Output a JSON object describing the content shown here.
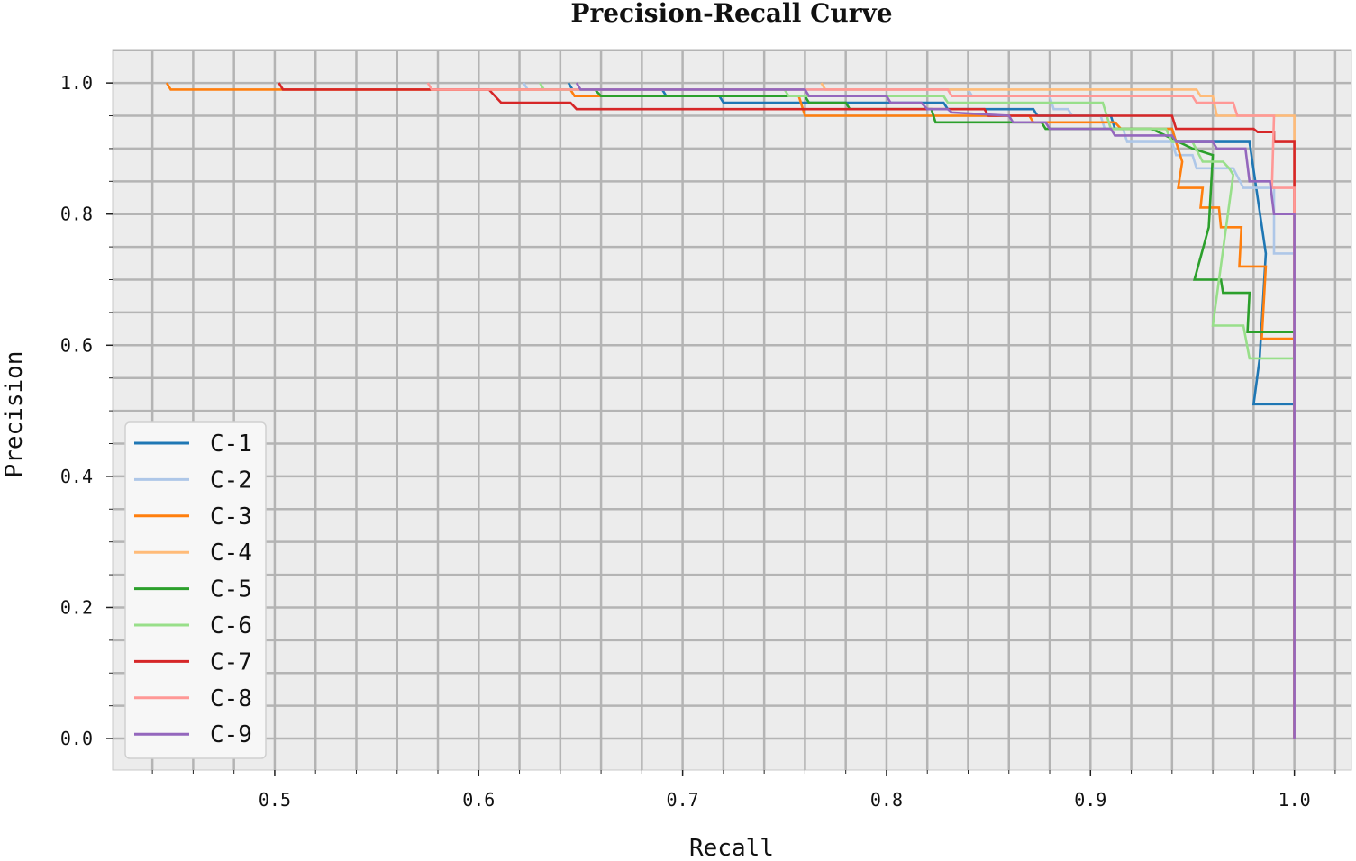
{
  "chart_data": {
    "type": "line",
    "title": "Precision-Recall Curve",
    "xlabel": "Recall",
    "ylabel": "Precision",
    "xlim": [
      0.4205,
      1.028
    ],
    "ylim": [
      -0.048,
      1.051
    ],
    "xticks": [
      "0.5",
      "0.6",
      "0.7",
      "0.8",
      "0.9",
      "1.0"
    ],
    "yticks": [
      "0.0",
      "0.2",
      "0.4",
      "0.6",
      "0.8",
      "1.0"
    ],
    "grid": true,
    "grid_x_step": 0.02,
    "grid_y_step": 0.05,
    "background": "#ececec",
    "legend_position": "lower-left",
    "series": [
      {
        "name": "C-1",
        "color": "#1f77b4",
        "points": [
          [
            0.644,
            1.0
          ],
          [
            0.646,
            0.99
          ],
          [
            0.69,
            0.99
          ],
          [
            0.692,
            0.98
          ],
          [
            0.718,
            0.98
          ],
          [
            0.72,
            0.97
          ],
          [
            0.828,
            0.97
          ],
          [
            0.83,
            0.96
          ],
          [
            0.872,
            0.96
          ],
          [
            0.874,
            0.95
          ],
          [
            0.91,
            0.95
          ],
          [
            0.912,
            0.93
          ],
          [
            0.94,
            0.93
          ],
          [
            0.942,
            0.91
          ],
          [
            0.978,
            0.91
          ],
          [
            0.986,
            0.74
          ],
          [
            0.983,
            0.58
          ],
          [
            0.98,
            0.51
          ],
          [
            1.0,
            0.51
          ],
          [
            1.0,
            0.0
          ]
        ]
      },
      {
        "name": "C-2",
        "color": "#aec7e8",
        "points": [
          [
            0.622,
            1.0
          ],
          [
            0.624,
            0.99
          ],
          [
            0.84,
            0.99
          ],
          [
            0.842,
            0.98
          ],
          [
            0.88,
            0.98
          ],
          [
            0.882,
            0.96
          ],
          [
            0.889,
            0.96
          ],
          [
            0.891,
            0.95
          ],
          [
            0.905,
            0.95
          ],
          [
            0.907,
            0.93
          ],
          [
            0.916,
            0.93
          ],
          [
            0.918,
            0.91
          ],
          [
            0.94,
            0.91
          ],
          [
            0.942,
            0.89
          ],
          [
            0.95,
            0.89
          ],
          [
            0.952,
            0.87
          ],
          [
            0.97,
            0.87
          ],
          [
            0.975,
            0.84
          ],
          [
            0.99,
            0.84
          ],
          [
            0.99,
            0.74
          ],
          [
            1.0,
            0.74
          ],
          [
            1.0,
            0.0
          ]
        ]
      },
      {
        "name": "C-3",
        "color": "#ff7f0e",
        "points": [
          [
            0.447,
            1.0
          ],
          [
            0.449,
            0.99
          ],
          [
            0.645,
            0.99
          ],
          [
            0.647,
            0.98
          ],
          [
            0.757,
            0.98
          ],
          [
            0.76,
            0.95
          ],
          [
            0.87,
            0.95
          ],
          [
            0.872,
            0.94
          ],
          [
            0.912,
            0.94
          ],
          [
            0.915,
            0.93
          ],
          [
            0.94,
            0.93
          ],
          [
            0.945,
            0.88
          ],
          [
            0.943,
            0.84
          ],
          [
            0.955,
            0.84
          ],
          [
            0.954,
            0.81
          ],
          [
            0.963,
            0.81
          ],
          [
            0.964,
            0.78
          ],
          [
            0.974,
            0.78
          ],
          [
            0.973,
            0.72
          ],
          [
            0.986,
            0.72
          ],
          [
            0.984,
            0.61
          ],
          [
            1.0,
            0.61
          ],
          [
            1.0,
            0.0
          ]
        ]
      },
      {
        "name": "C-4",
        "color": "#ffbb78",
        "points": [
          [
            0.768,
            1.0
          ],
          [
            0.77,
            0.99
          ],
          [
            0.952,
            0.99
          ],
          [
            0.954,
            0.98
          ],
          [
            0.96,
            0.98
          ],
          [
            0.962,
            0.95
          ],
          [
            1.0,
            0.95
          ],
          [
            1.0,
            0.0
          ]
        ]
      },
      {
        "name": "C-5",
        "color": "#2ca02c",
        "points": [
          [
            0.657,
            0.99
          ],
          [
            0.66,
            0.98
          ],
          [
            0.76,
            0.98
          ],
          [
            0.762,
            0.97
          ],
          [
            0.78,
            0.97
          ],
          [
            0.782,
            0.96
          ],
          [
            0.822,
            0.96
          ],
          [
            0.824,
            0.94
          ],
          [
            0.876,
            0.94
          ],
          [
            0.878,
            0.93
          ],
          [
            0.93,
            0.93
          ],
          [
            0.95,
            0.9
          ],
          [
            0.96,
            0.89
          ],
          [
            0.958,
            0.78
          ],
          [
            0.951,
            0.7
          ],
          [
            0.964,
            0.7
          ],
          [
            0.965,
            0.68
          ],
          [
            0.978,
            0.68
          ],
          [
            0.977,
            0.62
          ],
          [
            1.0,
            0.62
          ],
          [
            1.0,
            0.0
          ]
        ]
      },
      {
        "name": "C-6",
        "color": "#98df8a",
        "points": [
          [
            0.63,
            1.0
          ],
          [
            0.632,
            0.99
          ],
          [
            0.75,
            0.99
          ],
          [
            0.752,
            0.98
          ],
          [
            0.828,
            0.98
          ],
          [
            0.83,
            0.97
          ],
          [
            0.906,
            0.97
          ],
          [
            0.91,
            0.93
          ],
          [
            0.937,
            0.93
          ],
          [
            0.94,
            0.91
          ],
          [
            0.95,
            0.91
          ],
          [
            0.955,
            0.88
          ],
          [
            0.965,
            0.88
          ],
          [
            0.968,
            0.87
          ],
          [
            0.97,
            0.86
          ],
          [
            0.96,
            0.63
          ],
          [
            0.975,
            0.63
          ],
          [
            0.978,
            0.58
          ],
          [
            1.0,
            0.58
          ],
          [
            1.0,
            0.0
          ]
        ]
      },
      {
        "name": "C-7",
        "color": "#d62728",
        "points": [
          [
            0.502,
            1.0
          ],
          [
            0.504,
            0.99
          ],
          [
            0.605,
            0.99
          ],
          [
            0.608,
            0.98
          ],
          [
            0.611,
            0.97
          ],
          [
            0.645,
            0.97
          ],
          [
            0.648,
            0.96
          ],
          [
            0.848,
            0.96
          ],
          [
            0.85,
            0.95
          ],
          [
            0.94,
            0.95
          ],
          [
            0.942,
            0.93
          ],
          [
            0.98,
            0.93
          ],
          [
            0.982,
            0.925
          ],
          [
            0.99,
            0.925
          ],
          [
            0.99,
            0.91
          ],
          [
            1.0,
            0.91
          ],
          [
            1.0,
            0.0
          ]
        ]
      },
      {
        "name": "C-8",
        "color": "#ff9896",
        "points": [
          [
            0.575,
            1.0
          ],
          [
            0.577,
            0.99
          ],
          [
            0.83,
            0.99
          ],
          [
            0.832,
            0.98
          ],
          [
            0.95,
            0.98
          ],
          [
            0.952,
            0.97
          ],
          [
            0.97,
            0.97
          ],
          [
            0.972,
            0.95
          ],
          [
            0.99,
            0.95
          ],
          [
            0.989,
            0.84
          ],
          [
            1.0,
            0.84
          ],
          [
            1.0,
            0.0
          ]
        ]
      },
      {
        "name": "C-9",
        "color": "#9467bd",
        "points": [
          [
            0.648,
            1.0
          ],
          [
            0.65,
            0.99
          ],
          [
            0.76,
            0.99
          ],
          [
            0.762,
            0.98
          ],
          [
            0.8,
            0.98
          ],
          [
            0.802,
            0.97
          ],
          [
            0.817,
            0.97
          ],
          [
            0.82,
            0.96
          ],
          [
            0.83,
            0.96
          ],
          [
            0.832,
            0.955
          ],
          [
            0.86,
            0.95
          ],
          [
            0.862,
            0.94
          ],
          [
            0.878,
            0.94
          ],
          [
            0.88,
            0.93
          ],
          [
            0.91,
            0.93
          ],
          [
            0.912,
            0.92
          ],
          [
            0.94,
            0.92
          ],
          [
            0.942,
            0.91
          ],
          [
            0.96,
            0.91
          ],
          [
            0.962,
            0.9
          ],
          [
            0.976,
            0.9
          ],
          [
            0.978,
            0.85
          ],
          [
            0.988,
            0.85
          ],
          [
            0.99,
            0.8
          ],
          [
            1.0,
            0.8
          ],
          [
            1.0,
            0.0
          ]
        ]
      }
    ]
  }
}
